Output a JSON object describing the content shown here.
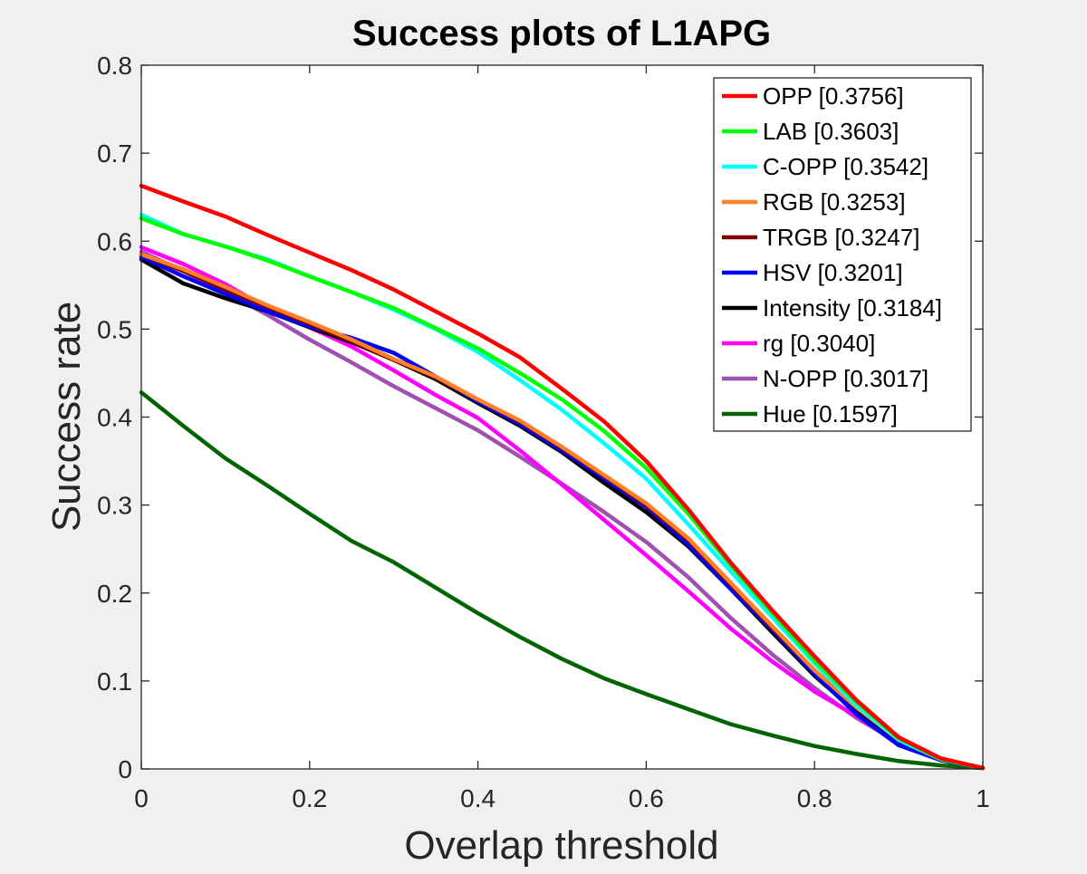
{
  "chart_data": {
    "type": "line",
    "title": "Success plots of L1APG",
    "xlabel": "Overlap threshold",
    "ylabel": "Success rate",
    "xlim": [
      0,
      1
    ],
    "ylim": [
      0,
      0.8
    ],
    "xticks": [
      0,
      0.2,
      0.4,
      0.6,
      0.8,
      1
    ],
    "xtick_labels": [
      "0",
      "0.2",
      "0.4",
      "0.6",
      "0.8",
      "1"
    ],
    "yticks": [
      0,
      0.1,
      0.2,
      0.3,
      0.4,
      0.5,
      0.6,
      0.7,
      0.8
    ],
    "ytick_labels": [
      "0",
      "0.1",
      "0.2",
      "0.3",
      "0.4",
      "0.5",
      "0.6",
      "0.7",
      "0.8"
    ],
    "grid": false,
    "legend_position": "top-right",
    "x": [
      0,
      0.05,
      0.1,
      0.15,
      0.2,
      0.25,
      0.3,
      0.35,
      0.4,
      0.45,
      0.5,
      0.55,
      0.6,
      0.65,
      0.7,
      0.75,
      0.8,
      0.85,
      0.9,
      0.95,
      1
    ],
    "series": [
      {
        "name": "OPP [0.3756]",
        "color": "#ff0000",
        "values": [
          0.663,
          0.645,
          0.628,
          0.607,
          0.587,
          0.567,
          0.545,
          0.52,
          0.495,
          0.468,
          0.432,
          0.395,
          0.35,
          0.295,
          0.235,
          0.18,
          0.128,
          0.078,
          0.036,
          0.012,
          0.001
        ]
      },
      {
        "name": "LAB [0.3603]",
        "color": "#00ff00",
        "values": [
          0.626,
          0.608,
          0.594,
          0.578,
          0.56,
          0.542,
          0.524,
          0.501,
          0.478,
          0.45,
          0.42,
          0.384,
          0.342,
          0.29,
          0.232,
          0.177,
          0.123,
          0.076,
          0.035,
          0.011,
          0.001
        ]
      },
      {
        "name": "C-OPP [0.3542]",
        "color": "#00ffff",
        "values": [
          0.63,
          0.608,
          0.594,
          0.579,
          0.56,
          0.542,
          0.522,
          0.5,
          0.474,
          0.442,
          0.408,
          0.37,
          0.33,
          0.278,
          0.225,
          0.172,
          0.12,
          0.072,
          0.033,
          0.011,
          0.001
        ]
      },
      {
        "name": "RGB [0.3253]",
        "color": "#ff7f27",
        "values": [
          0.585,
          0.568,
          0.548,
          0.527,
          0.508,
          0.488,
          0.466,
          0.446,
          0.42,
          0.396,
          0.366,
          0.334,
          0.302,
          0.262,
          0.212,
          0.162,
          0.112,
          0.07,
          0.033,
          0.011,
          0.001
        ]
      },
      {
        "name": "TRGB [0.3247]",
        "color": "#800000",
        "values": [
          0.585,
          0.566,
          0.545,
          0.525,
          0.506,
          0.486,
          0.465,
          0.445,
          0.42,
          0.395,
          0.365,
          0.333,
          0.3,
          0.26,
          0.21,
          0.16,
          0.112,
          0.07,
          0.033,
          0.011,
          0.001
        ]
      },
      {
        "name": "HSV [0.3201]",
        "color": "#0000ff",
        "values": [
          0.582,
          0.56,
          0.54,
          0.52,
          0.503,
          0.49,
          0.473,
          0.446,
          0.418,
          0.392,
          0.362,
          0.33,
          0.298,
          0.255,
          0.205,
          0.158,
          0.108,
          0.062,
          0.027,
          0.01,
          0.001
        ]
      },
      {
        "name": "Intensity [0.3184]",
        "color": "#000000",
        "values": [
          0.579,
          0.552,
          0.535,
          0.52,
          0.502,
          0.485,
          0.465,
          0.443,
          0.416,
          0.39,
          0.36,
          0.325,
          0.292,
          0.253,
          0.205,
          0.155,
          0.106,
          0.064,
          0.03,
          0.01,
          0.001
        ]
      },
      {
        "name": "rg [0.3040]",
        "color": "#ff00ff",
        "values": [
          0.593,
          0.574,
          0.551,
          0.524,
          0.502,
          0.48,
          0.453,
          0.425,
          0.399,
          0.362,
          0.323,
          0.283,
          0.243,
          0.202,
          0.16,
          0.122,
          0.088,
          0.06,
          0.03,
          0.01,
          0.001
        ]
      },
      {
        "name": "N-OPP [0.3017]",
        "color": "#a050b0",
        "values": [
          0.588,
          0.566,
          0.542,
          0.516,
          0.488,
          0.462,
          0.435,
          0.41,
          0.385,
          0.355,
          0.324,
          0.292,
          0.258,
          0.218,
          0.172,
          0.13,
          0.092,
          0.058,
          0.03,
          0.01,
          0.001
        ]
      },
      {
        "name": "Hue [0.1597]",
        "color": "#006400",
        "values": [
          0.428,
          0.39,
          0.353,
          0.322,
          0.29,
          0.259,
          0.235,
          0.206,
          0.177,
          0.15,
          0.125,
          0.103,
          0.085,
          0.068,
          0.051,
          0.038,
          0.026,
          0.017,
          0.009,
          0.004,
          0.001
        ]
      }
    ]
  }
}
